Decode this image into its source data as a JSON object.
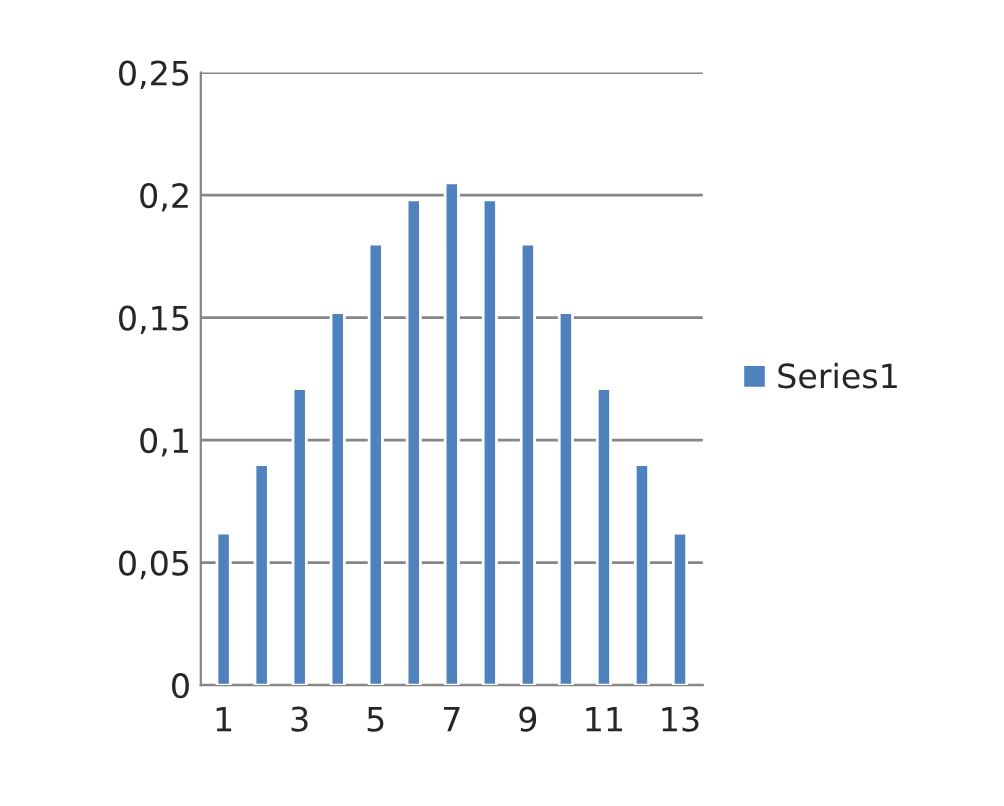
{
  "chart_data": {
    "type": "bar",
    "categories": [
      "1",
      null,
      "3",
      null,
      "5",
      null,
      "7",
      null,
      "9",
      null,
      "11",
      null,
      "13"
    ],
    "series": [
      {
        "name": "Series1",
        "color": "#4f81bd",
        "values": [
          0.062,
          0.09,
          0.121,
          0.152,
          0.18,
          0.198,
          0.205,
          0.198,
          0.18,
          0.152,
          0.121,
          0.09,
          0.062
        ]
      }
    ],
    "ylim": [
      0,
      0.25
    ],
    "yticks": [
      {
        "value": 0,
        "label": "0"
      },
      {
        "value": 0.05,
        "label": "0,05"
      },
      {
        "value": 0.1,
        "label": "0,1"
      },
      {
        "value": 0.15,
        "label": "0,15"
      },
      {
        "value": 0.2,
        "label": "0,2"
      },
      {
        "value": 0.25,
        "label": "0,25"
      }
    ],
    "grid": "y",
    "legend": "right"
  }
}
